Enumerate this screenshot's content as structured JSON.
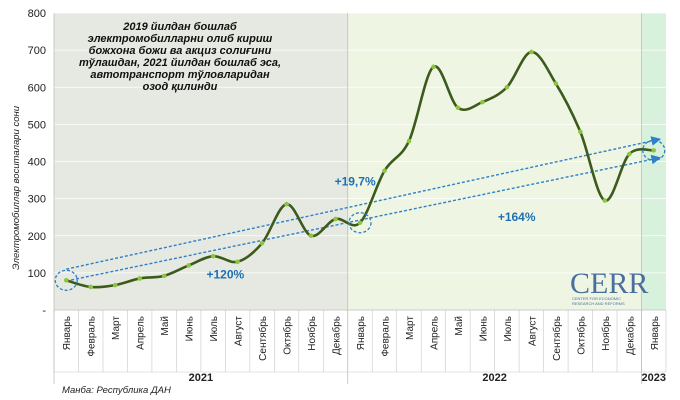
{
  "chart_data": {
    "type": "line",
    "ylabel": "Электромобиллар воситалари сони",
    "ylim": [
      0,
      800
    ],
    "yticks": [
      0,
      100,
      200,
      300,
      400,
      500,
      600,
      700,
      800
    ],
    "ytick_labels": [
      "-",
      "100",
      "200",
      "300",
      "400",
      "500",
      "600",
      "700",
      "800"
    ],
    "categories": [
      "Январь",
      "Февраль",
      "Март",
      "Апрель",
      "Май",
      "Июнь",
      "Июль",
      "Август",
      "Сентябрь",
      "Октябрь",
      "Ноябрь",
      "Декабрь",
      "Январь",
      "Февраль",
      "Март",
      "Апрель",
      "Май",
      "Июнь",
      "Июль",
      "Август",
      "Сентябрь",
      "Октябрь",
      "Ноябрь",
      "Декабрь",
      "Январь"
    ],
    "values": [
      80,
      62,
      67,
      85,
      92,
      120,
      145,
      130,
      180,
      285,
      200,
      245,
      235,
      375,
      455,
      655,
      545,
      560,
      600,
      695,
      610,
      480,
      295,
      420,
      430
    ],
    "years": [
      {
        "label": "2021",
        "start": 0,
        "end": 11
      },
      {
        "label": "2022",
        "start": 12,
        "end": 23
      },
      {
        "label": "2023",
        "start": 24,
        "end": 24
      }
    ],
    "annotation": "2019 йилдан бошлаб электромобилларни олиб кириш божхона божи ва акциз солиғини тўлашдан, 2021 йилдан бошлаб эса, автотранспорт тўловларидан озод қилинди",
    "annotation_lines": [
      "2019 йилдан бошлаб",
      "электромобилларни олиб кириш",
      "божхона божи ва акциз солиғини",
      "тўлашдан, 2021 йилдан бошлаб эса,",
      "автотранспорт тўловларидан",
      "озод қилинди"
    ],
    "growth_labels": [
      {
        "text": "+120%",
        "x": 6.5,
        "y": 85
      },
      {
        "text": "+19,7%",
        "x": 11.8,
        "y": 335
      },
      {
        "text": "+164%",
        "x": 18.4,
        "y": 240
      }
    ],
    "trend_arrows": [
      {
        "from": [
          0,
          110
        ],
        "to": [
          24,
          460
        ]
      },
      {
        "from": [
          0,
          78
        ],
        "to": [
          24,
          410
        ]
      }
    ],
    "highlight_circles": [
      0,
      12,
      24
    ],
    "source": "Манба: Республика ДАН",
    "colors": {
      "line": "#3c5a1b",
      "marker": "#8cc63f",
      "bg2021": "#e6e9e1",
      "bg2022": "#eef6e3",
      "bg2023": "#d8f1dd",
      "trend": "#2f7fc9"
    }
  },
  "logo": {
    "title": "CERR",
    "sub1": "CENTER FOR ECONOMIC",
    "sub2": "RESEARCH AND REFORMS"
  }
}
